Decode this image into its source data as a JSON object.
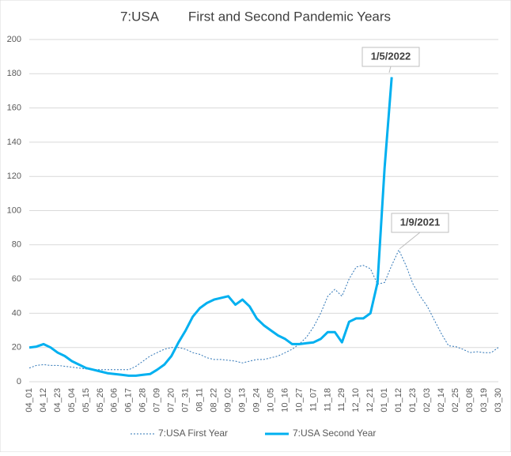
{
  "chart_data": {
    "type": "line",
    "title": "7:USA        First and Second Pandemic Years",
    "categories": [
      "04_01",
      null,
      "04_12",
      null,
      "04_23",
      null,
      "05_04",
      null,
      "05_15",
      null,
      "05_26",
      null,
      "06_06",
      null,
      "06_17",
      null,
      "06_28",
      null,
      "07_09",
      null,
      "07_20",
      null,
      "07_31",
      null,
      "08_11",
      null,
      "08_22",
      null,
      "09_02",
      null,
      "09_13",
      null,
      "09_24",
      null,
      "10_05",
      null,
      "10_16",
      null,
      "10_27",
      null,
      "11_07",
      null,
      "11_18",
      null,
      "11_29",
      null,
      "12_10",
      null,
      "12_21",
      null,
      "01_01",
      null,
      "01_12",
      null,
      "01_23",
      null,
      "02_03",
      null,
      "02_14",
      null,
      "02_25",
      null,
      "03_08",
      null,
      "03_19",
      null,
      "03_30"
    ],
    "series": [
      {
        "name": "7:USA First Year",
        "color": "#2e75b6",
        "style": "dotted",
        "values": [
          8,
          9.5,
          10,
          9.5,
          9.5,
          9,
          8.5,
          8,
          7.5,
          7,
          7,
          7,
          7,
          7,
          7,
          9,
          12,
          15,
          17,
          19,
          20,
          20,
          19,
          17,
          16,
          14,
          13,
          13,
          12.5,
          12,
          11,
          12,
          13,
          13,
          14,
          15,
          17,
          19,
          22,
          26,
          32,
          40,
          50,
          54,
          50,
          60,
          67,
          68,
          66,
          57,
          58,
          68,
          77,
          68,
          57,
          50,
          44,
          36,
          28,
          21,
          20.5,
          19,
          17,
          17.5,
          17,
          17,
          20
        ]
      },
      {
        "name": "7:USA Second Year",
        "color": "#00b0f0",
        "style": "solid",
        "values": [
          20,
          20.5,
          22,
          20,
          17,
          15,
          12,
          10,
          8,
          7,
          6,
          5,
          4.5,
          4,
          3.5,
          3.5,
          4,
          4.5,
          7,
          10,
          15,
          23,
          30,
          38,
          43,
          46,
          48,
          49,
          50,
          45,
          48,
          44,
          37,
          33,
          30,
          27,
          25,
          22,
          22,
          22.5,
          23,
          25,
          29,
          29,
          23,
          35,
          37,
          37,
          40,
          58,
          125,
          178,
          null,
          null,
          null,
          null,
          null,
          null,
          null,
          null,
          null,
          null,
          null,
          null,
          null,
          null,
          null
        ]
      }
    ],
    "annotations": [
      "1/5/2022",
      "1/9/2021"
    ],
    "ylim": [
      0,
      200
    ],
    "yticks": [
      0,
      20,
      40,
      60,
      80,
      100,
      120,
      140,
      160,
      180,
      200
    ],
    "grid": true,
    "legend": "bottom"
  }
}
